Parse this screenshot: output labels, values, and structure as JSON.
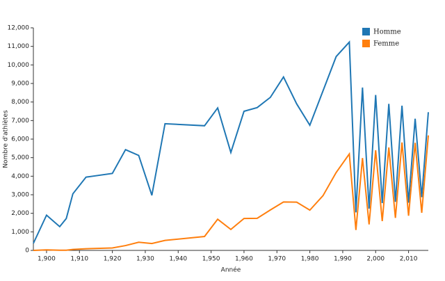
{
  "chart_data": {
    "type": "line",
    "x_label": "Année",
    "y_label": "Nombre d'athlètes",
    "x": [
      1896,
      1900,
      1904,
      1906,
      1908,
      1912,
      1920,
      1924,
      1928,
      1932,
      1936,
      1948,
      1952,
      1956,
      1960,
      1964,
      1968,
      1972,
      1976,
      1980,
      1984,
      1988,
      1992,
      1994,
      1996,
      1998,
      2000,
      2002,
      2004,
      2006,
      2008,
      2010,
      2012,
      2014,
      2016
    ],
    "series": [
      {
        "name": "Homme",
        "color": "#1f77b4",
        "values": [
          380,
          1900,
          1280,
          1720,
          3050,
          3950,
          4150,
          5430,
          5120,
          2970,
          6830,
          6720,
          7680,
          5280,
          7500,
          7700,
          8250,
          9350,
          7900,
          6750,
          8600,
          10450,
          11230,
          2050,
          8780,
          2250,
          8380,
          2550,
          7900,
          2620,
          7800,
          2570,
          7100,
          2870,
          7450
        ]
      },
      {
        "name": "Femme",
        "color": "#ff7f0e",
        "values": [
          0,
          30,
          10,
          10,
          50,
          90,
          130,
          260,
          440,
          370,
          540,
          750,
          1680,
          1130,
          1720,
          1730,
          2180,
          2610,
          2600,
          2170,
          2950,
          4200,
          5200,
          1100,
          4980,
          1400,
          5400,
          1580,
          5550,
          1750,
          5820,
          1870,
          5800,
          2030,
          6200
        ]
      }
    ],
    "xlim": [
      1896,
      2016
    ],
    "xticks": [
      {
        "value": 1900,
        "label": "1,900"
      },
      {
        "value": 1910,
        "label": "1,910"
      },
      {
        "value": 1920,
        "label": "1,920"
      },
      {
        "value": 1930,
        "label": "1,930"
      },
      {
        "value": 1940,
        "label": "1,940"
      },
      {
        "value": 1950,
        "label": "1,950"
      },
      {
        "value": 1960,
        "label": "1,960"
      },
      {
        "value": 1970,
        "label": "1,970"
      },
      {
        "value": 1980,
        "label": "1,980"
      },
      {
        "value": 1990,
        "label": "1,990"
      },
      {
        "value": 2000,
        "label": "2,000"
      },
      {
        "value": 2010,
        "label": "2,010"
      }
    ],
    "ylim": [
      0,
      12000
    ],
    "yticks": [
      0,
      {
        "value": 1000,
        "label": "1,000"
      },
      {
        "value": 2000,
        "label": "2,000"
      },
      {
        "value": 3000,
        "label": "3,000"
      },
      {
        "value": 4000,
        "label": "4,000"
      },
      {
        "value": 5000,
        "label": "5,000"
      },
      {
        "value": 6000,
        "label": "6,000"
      },
      {
        "value": 7000,
        "label": "7,000"
      },
      {
        "value": 8000,
        "label": "8,000"
      },
      {
        "value": 9000,
        "label": "9,000"
      },
      {
        "value": 10000,
        "label": "10,000"
      },
      {
        "value": 11000,
        "label": "11,000"
      },
      {
        "value": 12000,
        "label": "12,000"
      }
    ],
    "legend": "top-right"
  }
}
